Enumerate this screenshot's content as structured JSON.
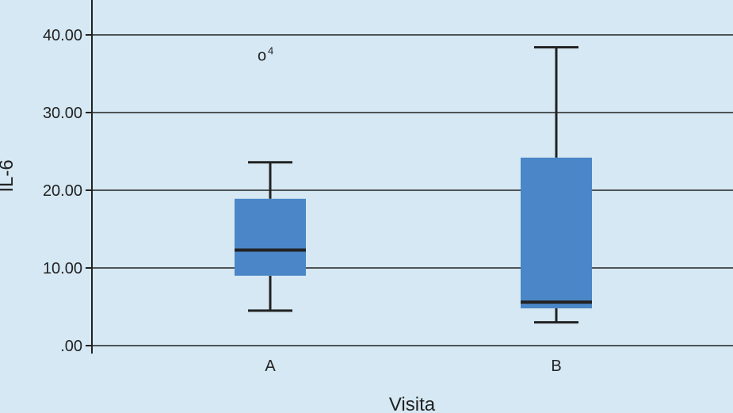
{
  "chart_data": {
    "type": "boxplot",
    "xlabel": "Visita",
    "ylabel": "IL-6",
    "ylim": [
      0,
      40
    ],
    "yticks": [
      {
        "value": 0,
        "label": ".00"
      },
      {
        "value": 10,
        "label": "10.00"
      },
      {
        "value": 20,
        "label": "20.00"
      },
      {
        "value": 30,
        "label": "30.00"
      },
      {
        "value": 40,
        "label": "40.00"
      }
    ],
    "grid": true,
    "colors": {
      "background": "#d5e8f3",
      "box": "#4a86c8",
      "line": "#222222"
    },
    "categories": [
      "A",
      "B"
    ],
    "boxes": [
      {
        "category": "A",
        "whisker_low": 4.5,
        "q1": 9.0,
        "median": 12.3,
        "q3": 18.9,
        "whisker_high": 23.6,
        "outliers": [
          {
            "value": 37.2,
            "marker": "o",
            "label": "4"
          }
        ]
      },
      {
        "category": "B",
        "whisker_low": 3.0,
        "q1": 4.8,
        "median": 5.6,
        "q3": 24.2,
        "whisker_high": 38.4,
        "outliers": []
      }
    ]
  }
}
